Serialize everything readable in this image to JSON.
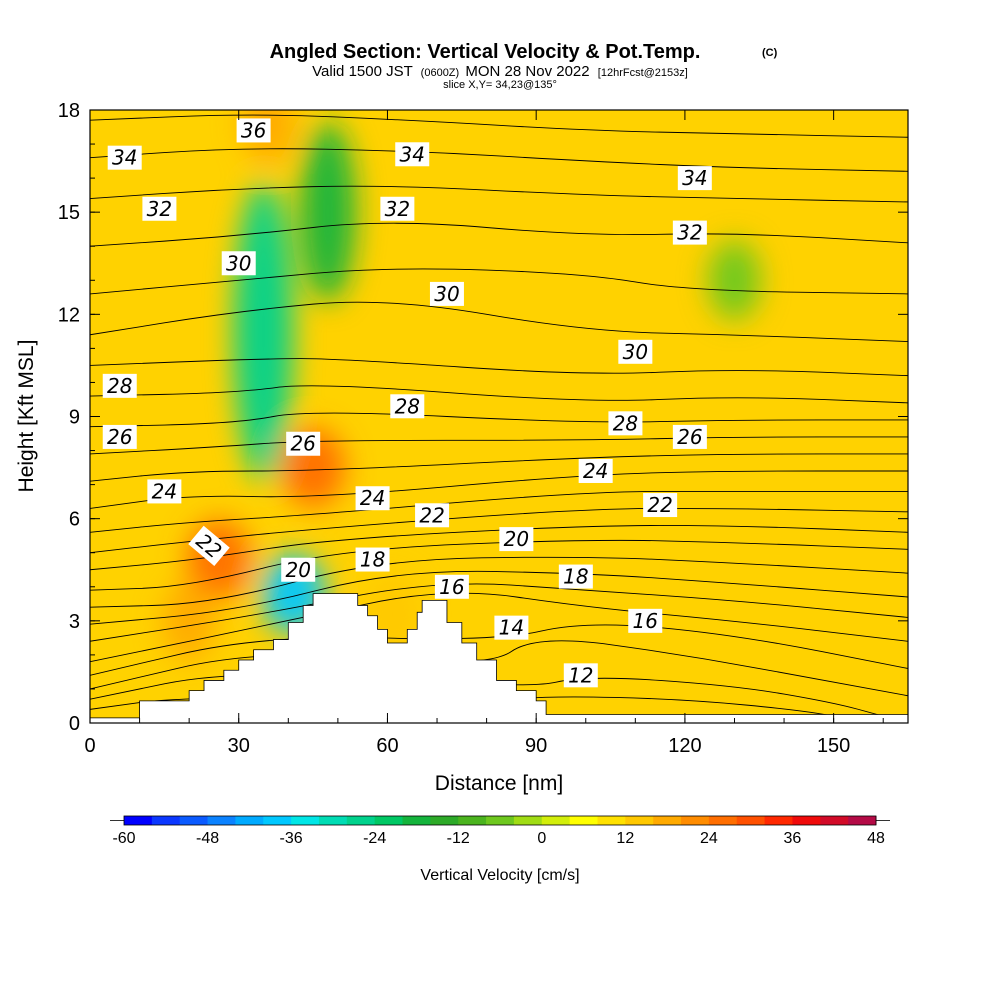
{
  "chart_data": {
    "type": "heatmap",
    "title": "Angled Section: Vertical Velocity & Pot.Temp.",
    "title_mark": "(C)",
    "subtitle": {
      "prefix": "Valid 1500 JST",
      "utc": "(0600Z)",
      "date": "MON 28 Nov 2022",
      "fcst": "[12hrFcst@2153z]"
    },
    "slice_label": "slice X,Y= 34,23@135°",
    "xlabel": "Distance [nm]",
    "ylabel": "Height [Kft MSL]",
    "xlim": [
      0,
      165
    ],
    "ylim": [
      0,
      18
    ],
    "x_ticks": [
      0,
      30,
      60,
      90,
      120,
      150
    ],
    "y_ticks": [
      0,
      3,
      6,
      9,
      12,
      15,
      18
    ],
    "colorbar": {
      "label": "Vertical Velocity [cm/s]",
      "ticks": [
        -60,
        -48,
        -36,
        -24,
        -12,
        0,
        12,
        24,
        36,
        48
      ],
      "range": [
        -60,
        48
      ],
      "step": 4,
      "colors": [
        "#0000ff",
        "#0a37ff",
        "#0a5aff",
        "#0a82ff",
        "#00aaff",
        "#00c8ff",
        "#00e6e6",
        "#00dcb4",
        "#00d28c",
        "#00c864",
        "#14b43c",
        "#2daa28",
        "#4bb41e",
        "#6ec81e",
        "#a0dc14",
        "#d2ee0a",
        "#ffff00",
        "#ffe100",
        "#ffc800",
        "#ffaa00",
        "#ff8c00",
        "#ff6e00",
        "#ff5000",
        "#ff2800",
        "#f00a0a",
        "#d20a28",
        "#b40a46",
        "#960a64",
        "#7d0a82"
      ]
    },
    "terrain_kft": [
      [
        0,
        0.15
      ],
      [
        10,
        0.65
      ],
      [
        17,
        0.65
      ],
      [
        20,
        0.95
      ],
      [
        23,
        1.25
      ],
      [
        27,
        1.55
      ],
      [
        30,
        1.85
      ],
      [
        33,
        2.15
      ],
      [
        37,
        2.45
      ],
      [
        40,
        2.95
      ],
      [
        43,
        3.45
      ],
      [
        45,
        3.8
      ],
      [
        52,
        3.8
      ],
      [
        54,
        3.45
      ],
      [
        56,
        3.15
      ],
      [
        58,
        2.75
      ],
      [
        60,
        2.35
      ],
      [
        62,
        2.35
      ],
      [
        64,
        2.75
      ],
      [
        66,
        3.25
      ],
      [
        67,
        3.6
      ],
      [
        70,
        3.6
      ],
      [
        72,
        2.95
      ],
      [
        75,
        2.35
      ],
      [
        78,
        1.85
      ],
      [
        82,
        1.25
      ],
      [
        86,
        0.95
      ],
      [
        90,
        0.65
      ],
      [
        92,
        0.25
      ],
      [
        165,
        0.25
      ]
    ],
    "vertical_velocity_features": [
      {
        "x": 35,
        "z": 11.5,
        "w": -28,
        "desc": "downdraft core"
      },
      {
        "x": 48,
        "z": 15.0,
        "w": -18,
        "desc": "upper downdraft"
      },
      {
        "x": 130,
        "z": 13.0,
        "w": -8,
        "desc": "weak sinking"
      },
      {
        "x": 26,
        "z": 4.8,
        "w": 26,
        "desc": "updraft"
      },
      {
        "x": 20,
        "z": 3.0,
        "w": 18,
        "desc": "updraft"
      },
      {
        "x": 45,
        "z": 7.5,
        "w": 24,
        "desc": "updraft"
      },
      {
        "x": 36,
        "z": 17.6,
        "w": 18,
        "desc": "upper updraft"
      },
      {
        "x": 41,
        "z": 3.8,
        "w": -40,
        "desc": "lee downslope"
      },
      {
        "x": 61,
        "z": 3.2,
        "w": 14,
        "desc": "updraft"
      }
    ],
    "potential_temperature_labels": [
      {
        "value": "36",
        "x": 33,
        "z": 17.4
      },
      {
        "value": "34",
        "x": 7,
        "z": 16.6
      },
      {
        "value": "34",
        "x": 65,
        "z": 16.7
      },
      {
        "value": "34",
        "x": 122,
        "z": 16.0
      },
      {
        "value": "32",
        "x": 14,
        "z": 15.1
      },
      {
        "value": "32",
        "x": 62,
        "z": 15.1
      },
      {
        "value": "32",
        "x": 121,
        "z": 14.4
      },
      {
        "value": "30",
        "x": 30,
        "z": 13.5
      },
      {
        "value": "30",
        "x": 72,
        "z": 12.6
      },
      {
        "value": "30",
        "x": 110,
        "z": 10.9
      },
      {
        "value": "28",
        "x": 6,
        "z": 9.9
      },
      {
        "value": "28",
        "x": 64,
        "z": 9.3
      },
      {
        "value": "28",
        "x": 108,
        "z": 8.8
      },
      {
        "value": "26",
        "x": 6,
        "z": 8.4
      },
      {
        "value": "26",
        "x": 43,
        "z": 8.2
      },
      {
        "value": "26",
        "x": 121,
        "z": 8.4
      },
      {
        "value": "24",
        "x": 15,
        "z": 6.8
      },
      {
        "value": "24",
        "x": 57,
        "z": 6.6
      },
      {
        "value": "24",
        "x": 102,
        "z": 7.4
      },
      {
        "value": "22",
        "x": 24,
        "z": 5.2
      },
      {
        "value": "22",
        "x": 69,
        "z": 6.1
      },
      {
        "value": "22",
        "x": 115,
        "z": 6.4
      },
      {
        "value": "20",
        "x": 42,
        "z": 4.5
      },
      {
        "value": "20",
        "x": 86,
        "z": 5.4
      },
      {
        "value": "18",
        "x": 57,
        "z": 4.8
      },
      {
        "value": "18",
        "x": 98,
        "z": 4.3
      },
      {
        "value": "16",
        "x": 73,
        "z": 4.0
      },
      {
        "value": "16",
        "x": 112,
        "z": 3.0
      },
      {
        "value": "14",
        "x": 85,
        "z": 2.8
      },
      {
        "value": "12",
        "x": 99,
        "z": 1.4
      }
    ],
    "isentrope_heights_kft": [
      {
        "theta": 12,
        "pts": [
          [
            0,
            0.4
          ],
          [
            20,
            0.8
          ],
          [
            80,
            0.6
          ],
          [
            92,
            0.8
          ],
          [
            120,
            0.7
          ],
          [
            145,
            0.35
          ],
          [
            155,
            0.05
          ]
        ]
      },
      {
        "theta": 13,
        "pts": [
          [
            0,
            0.7
          ],
          [
            30,
            1.6
          ],
          [
            88,
            1.0
          ],
          [
            100,
            1.4
          ],
          [
            130,
            1.1
          ],
          [
            150,
            0.6
          ],
          [
            160,
            0.2
          ]
        ]
      },
      {
        "theta": 14,
        "pts": [
          [
            0,
            1.0
          ],
          [
            35,
            2.2
          ],
          [
            80,
            1.6
          ],
          [
            90,
            2.6
          ],
          [
            120,
            2.0
          ],
          [
            150,
            1.2
          ],
          [
            165,
            0.8
          ]
        ]
      },
      {
        "theta": 15,
        "pts": [
          [
            0,
            1.4
          ],
          [
            35,
            2.6
          ],
          [
            82,
            2.4
          ],
          [
            100,
            3.0
          ],
          [
            130,
            2.6
          ],
          [
            165,
            1.6
          ]
        ]
      },
      {
        "theta": 16,
        "pts": [
          [
            0,
            1.8
          ],
          [
            40,
            3.0
          ],
          [
            72,
            4.0
          ],
          [
            100,
            3.4
          ],
          [
            130,
            3.0
          ],
          [
            165,
            2.4
          ]
        ]
      },
      {
        "theta": 17,
        "pts": [
          [
            0,
            2.4
          ],
          [
            35,
            3.2
          ],
          [
            70,
            4.2
          ],
          [
            100,
            3.9
          ],
          [
            130,
            3.6
          ],
          [
            165,
            3.1
          ]
        ]
      },
      {
        "theta": 18,
        "pts": [
          [
            0,
            2.9
          ],
          [
            30,
            3.3
          ],
          [
            62,
            4.5
          ],
          [
            100,
            4.4
          ],
          [
            130,
            4.1
          ],
          [
            165,
            3.7
          ]
        ]
      },
      {
        "theta": 19,
        "pts": [
          [
            0,
            3.4
          ],
          [
            25,
            3.5
          ],
          [
            58,
            4.8
          ],
          [
            100,
            4.9
          ],
          [
            130,
            4.7
          ],
          [
            165,
            4.4
          ]
        ]
      },
      {
        "theta": 20,
        "pts": [
          [
            0,
            3.9
          ],
          [
            20,
            4.0
          ],
          [
            50,
            5.1
          ],
          [
            100,
            5.4
          ],
          [
            130,
            5.3
          ],
          [
            165,
            5.1
          ]
        ]
      },
      {
        "theta": 21,
        "pts": [
          [
            0,
            4.5
          ],
          [
            22,
            4.8
          ],
          [
            48,
            5.4
          ],
          [
            100,
            5.8
          ],
          [
            130,
            5.8
          ],
          [
            165,
            5.6
          ]
        ]
      },
      {
        "theta": 22,
        "pts": [
          [
            0,
            5.0
          ],
          [
            18,
            5.3
          ],
          [
            45,
            5.7
          ],
          [
            100,
            6.3
          ],
          [
            130,
            6.3
          ],
          [
            165,
            6.2
          ]
        ]
      },
      {
        "theta": 23,
        "pts": [
          [
            0,
            5.6
          ],
          [
            20,
            5.9
          ],
          [
            44,
            6.1
          ],
          [
            100,
            6.8
          ],
          [
            130,
            6.8
          ],
          [
            165,
            6.8
          ]
        ]
      },
      {
        "theta": 24,
        "pts": [
          [
            0,
            6.3
          ],
          [
            20,
            6.7
          ],
          [
            46,
            6.6
          ],
          [
            100,
            7.3
          ],
          [
            130,
            7.4
          ],
          [
            165,
            7.4
          ]
        ]
      },
      {
        "theta": 25,
        "pts": [
          [
            0,
            7.1
          ],
          [
            20,
            7.4
          ],
          [
            46,
            7.4
          ],
          [
            100,
            7.8
          ],
          [
            130,
            7.9
          ],
          [
            165,
            7.9
          ]
        ]
      },
      {
        "theta": 26,
        "pts": [
          [
            0,
            7.9
          ],
          [
            25,
            8.1
          ],
          [
            44,
            8.3
          ],
          [
            100,
            8.3
          ],
          [
            130,
            8.4
          ],
          [
            165,
            8.4
          ]
        ]
      },
      {
        "theta": 27,
        "pts": [
          [
            0,
            8.7
          ],
          [
            30,
            8.8
          ],
          [
            44,
            9.2
          ],
          [
            100,
            8.8
          ],
          [
            130,
            8.9
          ],
          [
            165,
            8.9
          ]
        ]
      },
      {
        "theta": 28,
        "pts": [
          [
            0,
            9.6
          ],
          [
            30,
            9.7
          ],
          [
            45,
            10.0
          ],
          [
            100,
            9.4
          ],
          [
            130,
            9.6
          ],
          [
            165,
            9.4
          ]
        ]
      },
      {
        "theta": 29,
        "pts": [
          [
            0,
            10.5
          ],
          [
            35,
            10.7
          ],
          [
            50,
            10.7
          ],
          [
            100,
            10.2
          ],
          [
            130,
            10.4
          ],
          [
            165,
            10.2
          ]
        ]
      },
      {
        "theta": 30,
        "pts": [
          [
            0,
            11.4
          ],
          [
            30,
            12.1
          ],
          [
            60,
            12.5
          ],
          [
            100,
            11.5
          ],
          [
            130,
            11.4
          ],
          [
            165,
            11.2
          ]
        ]
      },
      {
        "theta": 31,
        "pts": [
          [
            0,
            12.6
          ],
          [
            30,
            13.0
          ],
          [
            60,
            13.4
          ],
          [
            100,
            13.2
          ],
          [
            120,
            12.7
          ],
          [
            165,
            12.6
          ]
        ]
      },
      {
        "theta": 32,
        "pts": [
          [
            0,
            14.0
          ],
          [
            30,
            14.3
          ],
          [
            60,
            14.8
          ],
          [
            100,
            14.3
          ],
          [
            130,
            14.4
          ],
          [
            165,
            14.1
          ]
        ]
      },
      {
        "theta": 33,
        "pts": [
          [
            0,
            15.4
          ],
          [
            30,
            15.7
          ],
          [
            60,
            15.8
          ],
          [
            100,
            15.5
          ],
          [
            130,
            15.4
          ],
          [
            165,
            15.3
          ]
        ]
      },
      {
        "theta": 34,
        "pts": [
          [
            0,
            16.6
          ],
          [
            30,
            16.9
          ],
          [
            65,
            16.8
          ],
          [
            100,
            16.5
          ],
          [
            130,
            16.3
          ],
          [
            165,
            16.2
          ]
        ]
      },
      {
        "theta": 35,
        "pts": [
          [
            0,
            17.7
          ],
          [
            33,
            17.9
          ],
          [
            65,
            17.7
          ],
          [
            100,
            17.4
          ],
          [
            130,
            17.3
          ],
          [
            165,
            17.2
          ]
        ]
      }
    ]
  }
}
